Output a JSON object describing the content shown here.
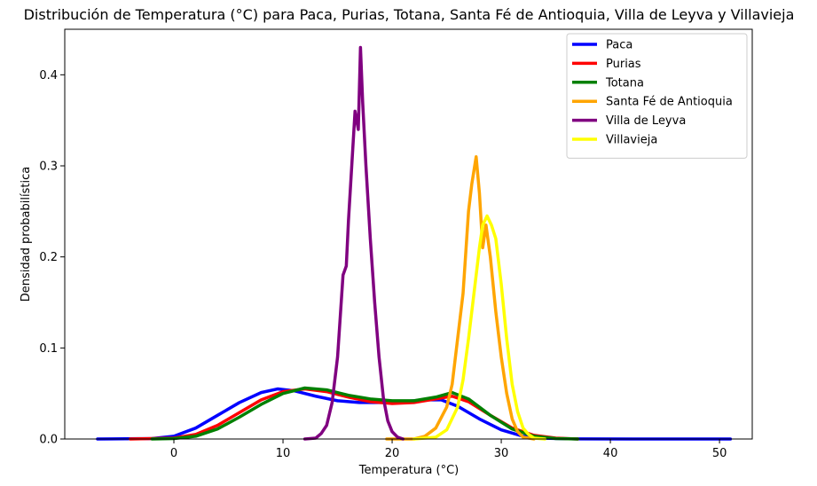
{
  "chart_data": {
    "type": "line",
    "title": "Distribución de Temperatura (°C) para Paca, Purias, Totana, Santa Fé de Antioquia, Villa de Leyva y Villavieja",
    "xlabel": "Temperatura (°C)",
    "ylabel": "Densidad probabilística",
    "xlim": [
      -10,
      53
    ],
    "ylim": [
      0,
      0.45
    ],
    "xticks": [
      "0",
      "10",
      "20",
      "30",
      "40",
      "50"
    ],
    "yticks": [
      "0.0",
      "0.1",
      "0.2",
      "0.3",
      "0.4"
    ],
    "grid": false,
    "legend_position": "top-right",
    "series": [
      {
        "name": "Paca",
        "color": "#0000ff",
        "points": [
          [
            -7,
            0
          ],
          [
            -2,
            0.0005
          ],
          [
            0,
            0.003
          ],
          [
            2,
            0.012
          ],
          [
            4,
            0.026
          ],
          [
            6,
            0.04
          ],
          [
            8,
            0.051
          ],
          [
            9.5,
            0.055
          ],
          [
            11,
            0.053
          ],
          [
            13,
            0.047
          ],
          [
            15,
            0.042
          ],
          [
            17,
            0.04
          ],
          [
            19,
            0.04
          ],
          [
            21,
            0.041
          ],
          [
            23,
            0.043
          ],
          [
            24.5,
            0.043
          ],
          [
            26,
            0.036
          ],
          [
            28,
            0.022
          ],
          [
            30,
            0.01
          ],
          [
            32,
            0.003
          ],
          [
            34,
            0.0008
          ],
          [
            37,
            0.0001
          ],
          [
            42,
            0
          ],
          [
            51,
            0
          ]
        ]
      },
      {
        "name": "Purias",
        "color": "#ff0000",
        "points": [
          [
            -4,
            0
          ],
          [
            0,
            0.001
          ],
          [
            2,
            0.005
          ],
          [
            4,
            0.015
          ],
          [
            6,
            0.029
          ],
          [
            8,
            0.043
          ],
          [
            10,
            0.052
          ],
          [
            12,
            0.055
          ],
          [
            14,
            0.052
          ],
          [
            16,
            0.046
          ],
          [
            18,
            0.041
          ],
          [
            20,
            0.039
          ],
          [
            22,
            0.04
          ],
          [
            24,
            0.044
          ],
          [
            25.5,
            0.047
          ],
          [
            27,
            0.041
          ],
          [
            29,
            0.026
          ],
          [
            31,
            0.012
          ],
          [
            33,
            0.004
          ],
          [
            35,
            0.001
          ],
          [
            37,
            0
          ]
        ]
      },
      {
        "name": "Totana",
        "color": "#008000",
        "points": [
          [
            -2,
            0
          ],
          [
            0,
            0.0005
          ],
          [
            2,
            0.003
          ],
          [
            4,
            0.011
          ],
          [
            6,
            0.024
          ],
          [
            8,
            0.038
          ],
          [
            10,
            0.05
          ],
          [
            12,
            0.056
          ],
          [
            14,
            0.054
          ],
          [
            16,
            0.048
          ],
          [
            18,
            0.044
          ],
          [
            20,
            0.042
          ],
          [
            22,
            0.042
          ],
          [
            24,
            0.046
          ],
          [
            25.5,
            0.051
          ],
          [
            27,
            0.044
          ],
          [
            29,
            0.026
          ],
          [
            31,
            0.011
          ],
          [
            33,
            0.003
          ],
          [
            35,
            0.0005
          ],
          [
            37,
            0
          ]
        ]
      },
      {
        "name": "Santa Fé de Antioquia",
        "color": "#ffa500",
        "points": [
          [
            19.5,
            0
          ],
          [
            22,
            0
          ],
          [
            23,
            0.003
          ],
          [
            24,
            0.012
          ],
          [
            25,
            0.035
          ],
          [
            25.5,
            0.06
          ],
          [
            26,
            0.11
          ],
          [
            26.5,
            0.16
          ],
          [
            27,
            0.25
          ],
          [
            27.3,
            0.28
          ],
          [
            27.7,
            0.31
          ],
          [
            28,
            0.27
          ],
          [
            28.3,
            0.21
          ],
          [
            28.6,
            0.235
          ],
          [
            29,
            0.2
          ],
          [
            29.5,
            0.14
          ],
          [
            30,
            0.09
          ],
          [
            30.5,
            0.05
          ],
          [
            31,
            0.022
          ],
          [
            31.5,
            0.008
          ],
          [
            32,
            0.002
          ],
          [
            33,
            0
          ]
        ]
      },
      {
        "name": "Villa de Leyva",
        "color": "#800080",
        "points": [
          [
            12,
            0
          ],
          [
            13,
            0.001
          ],
          [
            13.5,
            0.006
          ],
          [
            14,
            0.015
          ],
          [
            14.5,
            0.04
          ],
          [
            15,
            0.09
          ],
          [
            15.5,
            0.18
          ],
          [
            15.8,
            0.19
          ],
          [
            16,
            0.24
          ],
          [
            16.3,
            0.3
          ],
          [
            16.6,
            0.36
          ],
          [
            16.9,
            0.34
          ],
          [
            17.1,
            0.43
          ],
          [
            17.3,
            0.37
          ],
          [
            17.6,
            0.3
          ],
          [
            18,
            0.22
          ],
          [
            18.4,
            0.15
          ],
          [
            18.8,
            0.09
          ],
          [
            19.2,
            0.045
          ],
          [
            19.6,
            0.02
          ],
          [
            20,
            0.008
          ],
          [
            20.5,
            0.002
          ],
          [
            21,
            0
          ]
        ]
      },
      {
        "name": "Villavieja",
        "color": "#ffff00",
        "points": [
          [
            22,
            0
          ],
          [
            24,
            0.002
          ],
          [
            25,
            0.01
          ],
          [
            26,
            0.035
          ],
          [
            26.5,
            0.065
          ],
          [
            27,
            0.11
          ],
          [
            27.5,
            0.16
          ],
          [
            28,
            0.21
          ],
          [
            28.3,
            0.235
          ],
          [
            28.7,
            0.245
          ],
          [
            29.1,
            0.235
          ],
          [
            29.5,
            0.22
          ],
          [
            30,
            0.17
          ],
          [
            30.5,
            0.11
          ],
          [
            31,
            0.06
          ],
          [
            31.5,
            0.03
          ],
          [
            32,
            0.012
          ],
          [
            32.5,
            0.005
          ],
          [
            33,
            0.001
          ],
          [
            34,
            0
          ]
        ]
      }
    ]
  }
}
